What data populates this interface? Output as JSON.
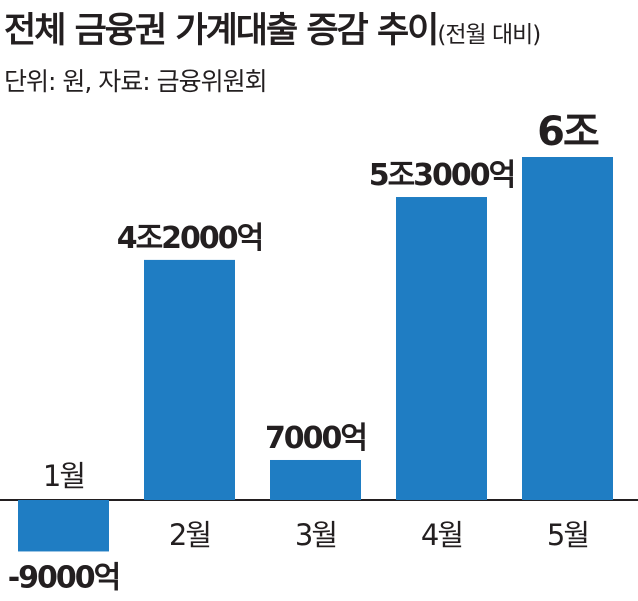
{
  "title": {
    "main": "전체 금융권 가계대출 증감 추이",
    "sub": "(전월 대비)"
  },
  "source": "단위: 원, 자료: 금융위원회",
  "colors": {
    "bar": "#1f7dc3",
    "text": "#231f20",
    "baseline": "#231f20"
  },
  "chart_data": {
    "type": "bar",
    "categories": [
      "1월",
      "2월",
      "3월",
      "4월",
      "5월"
    ],
    "values": [
      -9000,
      42000,
      7000,
      53000,
      60000
    ],
    "value_unit": "억원",
    "data_labels": [
      "-9000억",
      "4조2000억",
      "7000억",
      "5조3000억",
      "6조"
    ],
    "title": "전체 금융권 가계대출 증감 추이",
    "subtitle": "(전월 대비)",
    "grid": false,
    "legend": "none"
  }
}
